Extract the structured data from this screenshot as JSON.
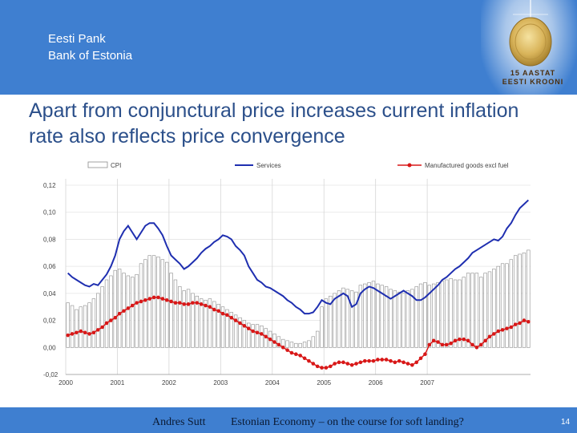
{
  "header": {
    "bank_name_et": "Eesti Pank",
    "bank_name_en": "Bank of Estonia",
    "emblem_line1": "15 AASTAT",
    "emblem_line2": "EESTI KROONI",
    "background_color": "#3f7fd0"
  },
  "slide_title": "Apart from conjunctural price increases current inflation rate also reflects price convergence",
  "footer": {
    "author": "Andres Sutt",
    "title": "Estonian Economy – on the course for soft landing?",
    "page": "14"
  },
  "chart_data": {
    "type": "bar",
    "legend_position": "top",
    "grid": true,
    "ylim": [
      -0.02,
      0.12
    ],
    "y_ticks": [
      -0.02,
      0.0,
      0.02,
      0.04,
      0.06,
      0.08,
      0.1,
      0.12
    ],
    "y_tick_labels": [
      "-0,02",
      "0,00",
      "0,02",
      "0,04",
      "0,06",
      "0,08",
      "0,10",
      "0,12"
    ],
    "x_tick_labels": [
      "2000",
      "2001",
      "2002",
      "2003",
      "2004",
      "2005",
      "2006",
      "2007"
    ],
    "months_from": "2000-01",
    "series": [
      {
        "name": "CPI",
        "kind": "bar",
        "color": "#9a9a9a",
        "values": [
          0.033,
          0.031,
          0.028,
          0.03,
          0.031,
          0.033,
          0.036,
          0.04,
          0.045,
          0.05,
          0.053,
          0.057,
          0.058,
          0.055,
          0.053,
          0.052,
          0.054,
          0.062,
          0.065,
          0.068,
          0.068,
          0.067,
          0.065,
          0.063,
          0.055,
          0.05,
          0.045,
          0.042,
          0.043,
          0.04,
          0.038,
          0.036,
          0.035,
          0.036,
          0.034,
          0.032,
          0.03,
          0.028,
          0.026,
          0.024,
          0.022,
          0.02,
          0.018,
          0.017,
          0.017,
          0.016,
          0.014,
          0.012,
          0.01,
          0.008,
          0.006,
          0.005,
          0.004,
          0.003,
          0.003,
          0.004,
          0.005,
          0.008,
          0.012,
          0.03,
          0.036,
          0.038,
          0.04,
          0.042,
          0.044,
          0.043,
          0.042,
          0.041,
          0.046,
          0.047,
          0.048,
          0.049,
          0.047,
          0.046,
          0.045,
          0.043,
          0.042,
          0.041,
          0.04,
          0.042,
          0.043,
          0.045,
          0.047,
          0.048,
          0.046,
          0.047,
          0.048,
          0.049,
          0.05,
          0.051,
          0.05,
          0.05,
          0.052,
          0.055,
          0.055,
          0.055,
          0.052,
          0.055,
          0.056,
          0.058,
          0.06,
          0.062,
          0.062,
          0.065,
          0.068,
          0.069,
          0.07,
          0.072
        ]
      },
      {
        "name": "Services",
        "kind": "line",
        "color": "#1f2fb0",
        "values": [
          0.055,
          0.052,
          0.05,
          0.048,
          0.046,
          0.045,
          0.047,
          0.046,
          0.05,
          0.054,
          0.06,
          0.068,
          0.08,
          0.086,
          0.09,
          0.085,
          0.08,
          0.085,
          0.09,
          0.092,
          0.092,
          0.088,
          0.083,
          0.075,
          0.068,
          0.065,
          0.062,
          0.058,
          0.06,
          0.063,
          0.066,
          0.07,
          0.073,
          0.075,
          0.078,
          0.08,
          0.083,
          0.082,
          0.08,
          0.075,
          0.072,
          0.068,
          0.06,
          0.055,
          0.05,
          0.048,
          0.045,
          0.044,
          0.042,
          0.04,
          0.038,
          0.035,
          0.033,
          0.03,
          0.028,
          0.025,
          0.025,
          0.026,
          0.03,
          0.035,
          0.033,
          0.032,
          0.036,
          0.038,
          0.04,
          0.038,
          0.03,
          0.032,
          0.04,
          0.043,
          0.045,
          0.044,
          0.042,
          0.04,
          0.038,
          0.036,
          0.038,
          0.04,
          0.042,
          0.04,
          0.038,
          0.035,
          0.035,
          0.037,
          0.04,
          0.043,
          0.046,
          0.05,
          0.052,
          0.055,
          0.058,
          0.06,
          0.063,
          0.066,
          0.07,
          0.072,
          0.074,
          0.076,
          0.078,
          0.08,
          0.079,
          0.082,
          0.088,
          0.092,
          0.098,
          0.103,
          0.106,
          0.109
        ]
      },
      {
        "name": "Manufactured goods excl fuel",
        "kind": "line-markers",
        "color": "#d81818",
        "values": [
          0.009,
          0.01,
          0.011,
          0.012,
          0.011,
          0.01,
          0.011,
          0.013,
          0.015,
          0.018,
          0.02,
          0.022,
          0.025,
          0.027,
          0.029,
          0.031,
          0.033,
          0.034,
          0.035,
          0.036,
          0.037,
          0.037,
          0.036,
          0.035,
          0.034,
          0.033,
          0.033,
          0.032,
          0.032,
          0.033,
          0.033,
          0.032,
          0.031,
          0.03,
          0.028,
          0.027,
          0.025,
          0.024,
          0.022,
          0.02,
          0.018,
          0.016,
          0.014,
          0.012,
          0.011,
          0.01,
          0.008,
          0.006,
          0.004,
          0.002,
          0.0,
          -0.002,
          -0.004,
          -0.005,
          -0.006,
          -0.008,
          -0.01,
          -0.012,
          -0.014,
          -0.015,
          -0.015,
          -0.014,
          -0.012,
          -0.011,
          -0.011,
          -0.012,
          -0.013,
          -0.012,
          -0.011,
          -0.01,
          -0.01,
          -0.01,
          -0.009,
          -0.009,
          -0.009,
          -0.01,
          -0.011,
          -0.01,
          -0.011,
          -0.012,
          -0.013,
          -0.011,
          -0.008,
          -0.005,
          0.002,
          0.005,
          0.004,
          0.002,
          0.002,
          0.003,
          0.005,
          0.006,
          0.006,
          0.005,
          0.002,
          0.0,
          0.002,
          0.005,
          0.008,
          0.01,
          0.012,
          0.013,
          0.014,
          0.015,
          0.017,
          0.018,
          0.02,
          0.019
        ]
      }
    ]
  }
}
